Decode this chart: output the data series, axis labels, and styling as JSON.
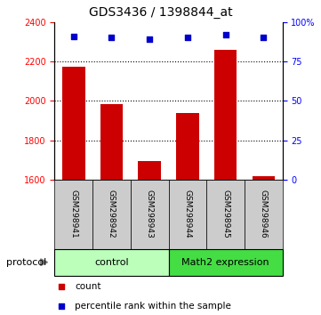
{
  "title": "GDS3436 / 1398844_at",
  "samples": [
    "GSM298941",
    "GSM298942",
    "GSM298943",
    "GSM298944",
    "GSM298945",
    "GSM298946"
  ],
  "counts": [
    2175,
    1982,
    1693,
    1940,
    2260,
    1618
  ],
  "percentiles": [
    91,
    90,
    89,
    90,
    92,
    90
  ],
  "ylim_left": [
    1600,
    2400
  ],
  "ylim_right": [
    0,
    100
  ],
  "yticks_left": [
    1600,
    1800,
    2000,
    2200,
    2400
  ],
  "yticks_right": [
    0,
    25,
    50,
    75,
    100
  ],
  "yticklabels_right": [
    "0",
    "25",
    "50",
    "75",
    "100%"
  ],
  "bar_color": "#cc0000",
  "dot_color": "#0000cc",
  "bar_width": 0.6,
  "groups": [
    {
      "label": "control",
      "indices": [
        0,
        1,
        2
      ],
      "color": "#bbffbb"
    },
    {
      "label": "Math2 expression",
      "indices": [
        3,
        4,
        5
      ],
      "color": "#44dd44"
    }
  ],
  "protocol_label": "protocol",
  "label_box_color": "#cccccc",
  "grid_lines": [
    1800,
    2000,
    2200
  ],
  "legend_items": [
    {
      "color": "#cc0000",
      "label": "count"
    },
    {
      "color": "#0000cc",
      "label": "percentile rank within the sample"
    }
  ]
}
